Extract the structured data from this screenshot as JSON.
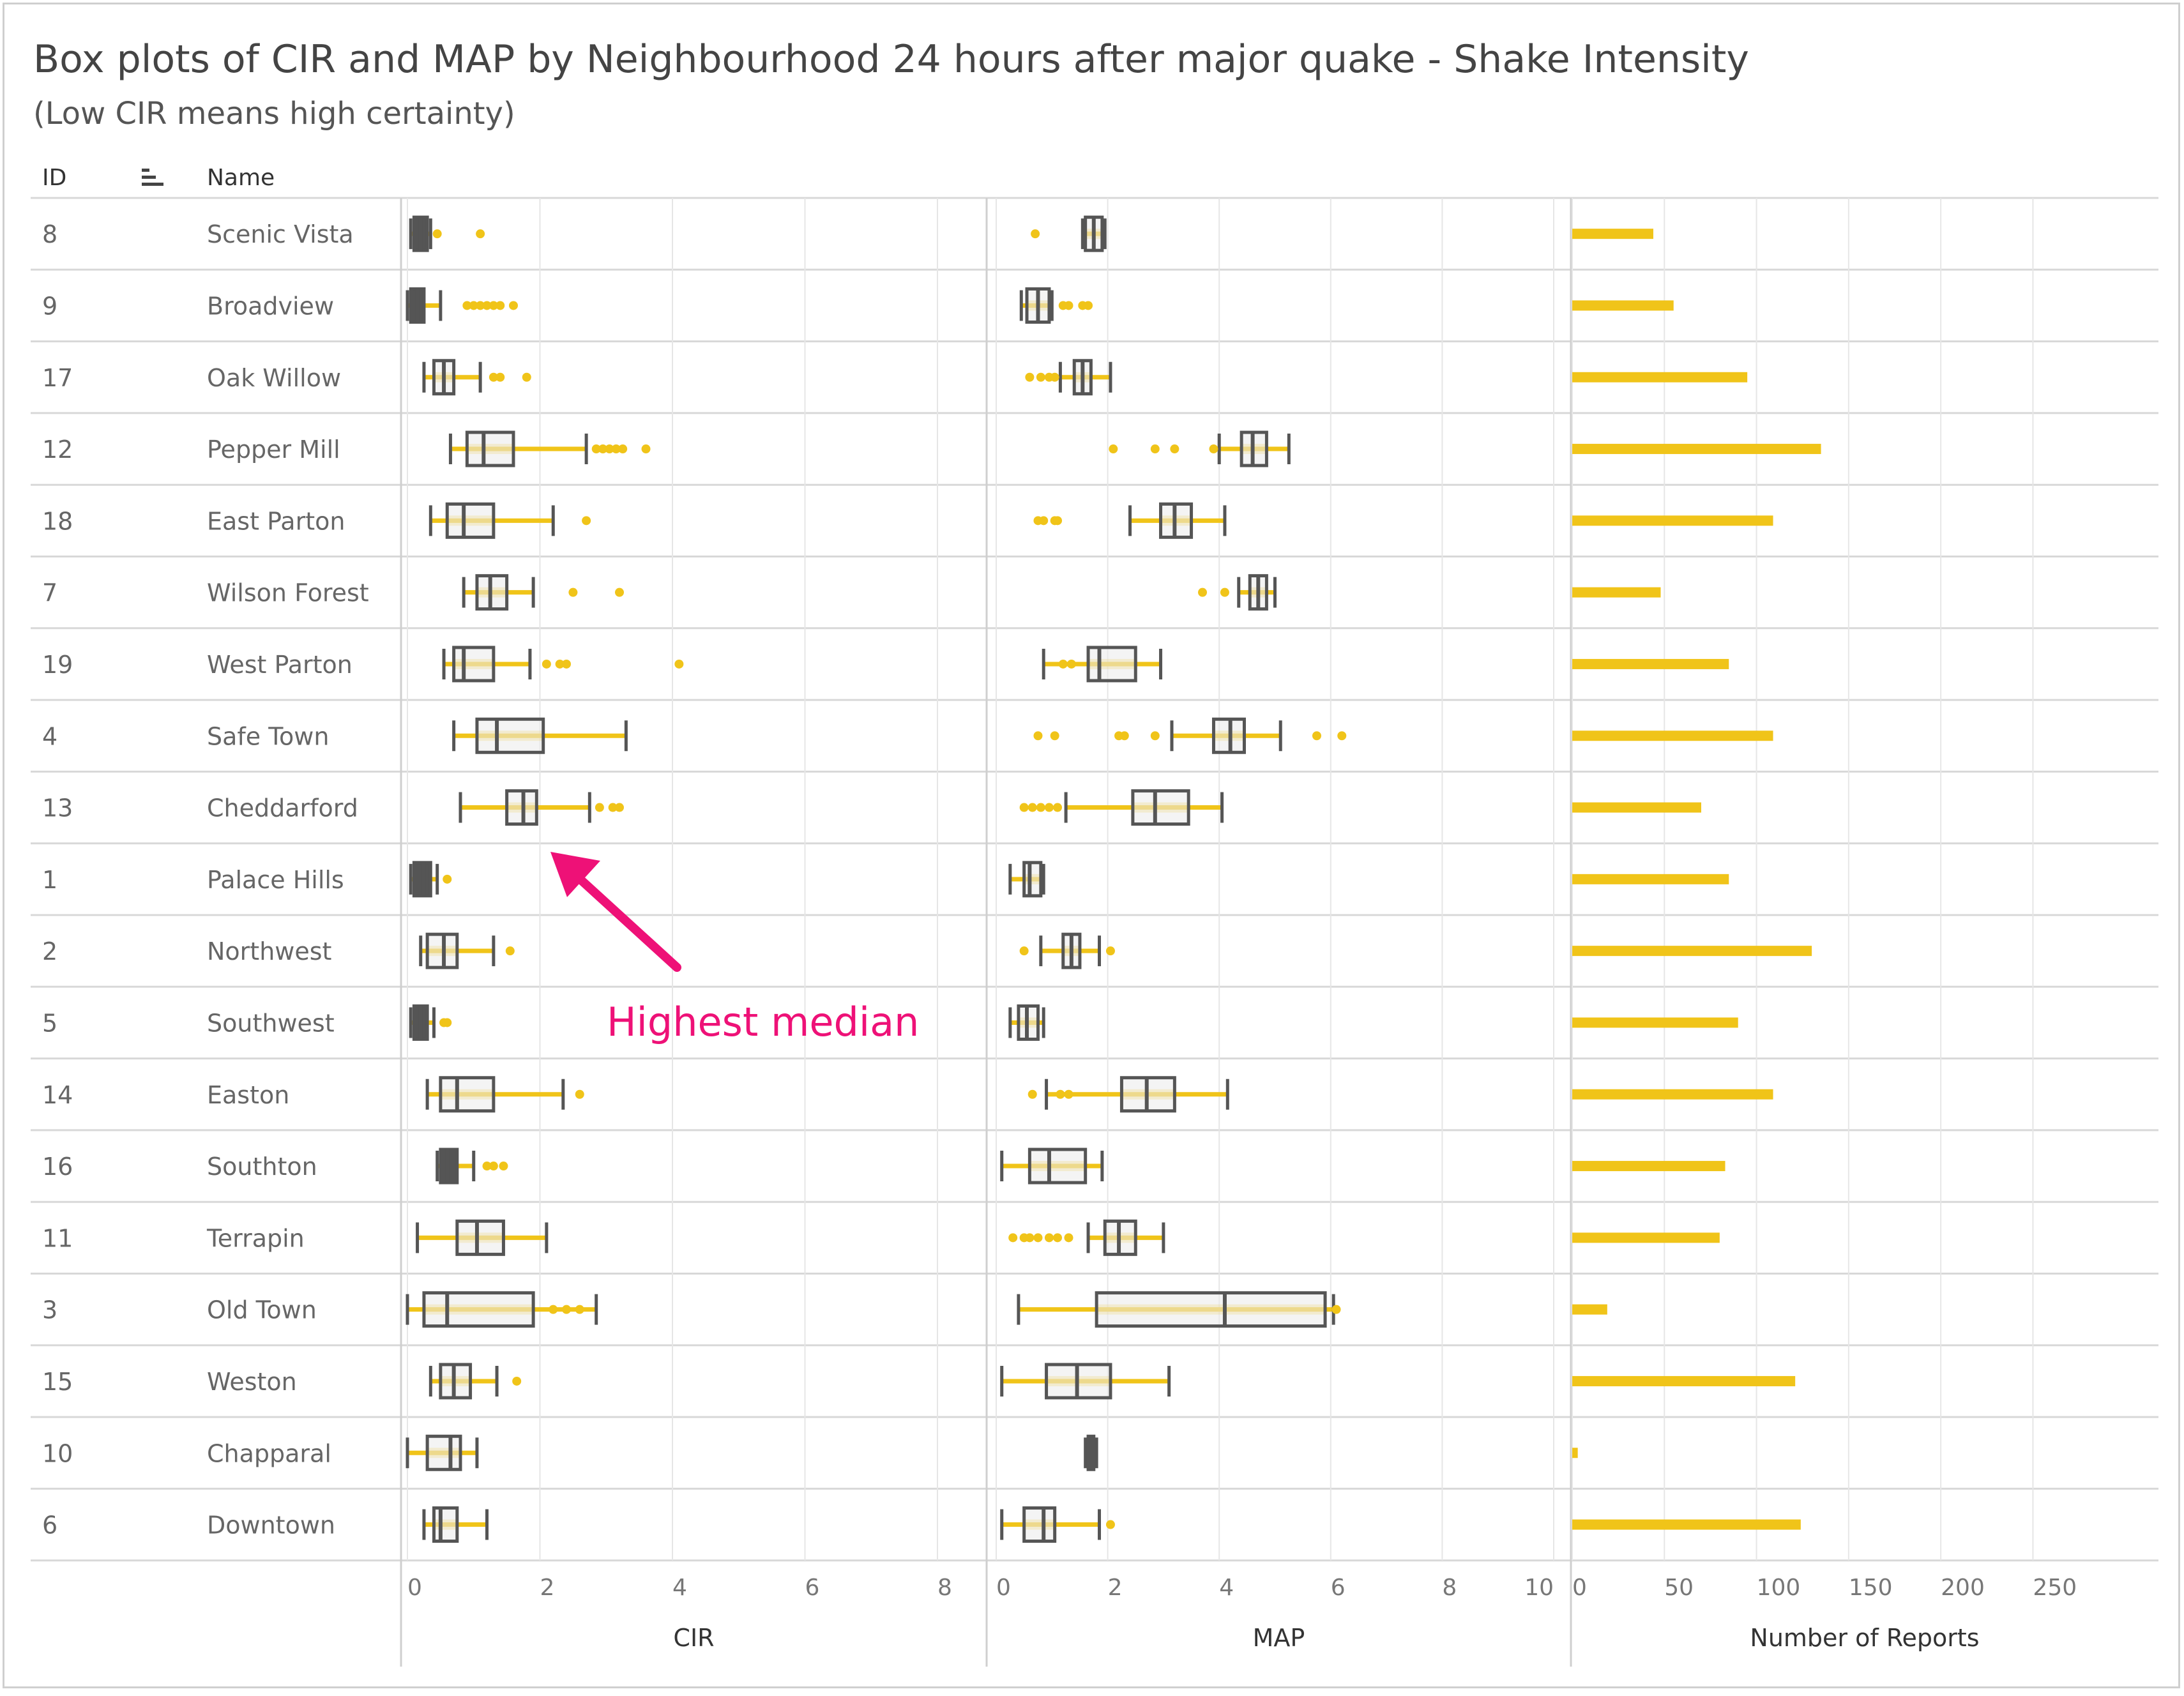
{
  "title": "Box plots of CIR and MAP by Neighbourhood 24 hours after major quake - Shake Intensity",
  "subtitle": "(Low CIR means high certainty)",
  "headers": {
    "id": "ID",
    "name": "Name"
  },
  "annotation": "Highest median",
  "colors": {
    "accent": "#f0c419",
    "box_stroke": "#555555",
    "annotation": "#ee1177",
    "grid": "#e6e6e6"
  },
  "icons": {
    "sort": "sort-descending-icon",
    "arrow": "arrow-up-left-icon"
  },
  "chart_data": [
    {
      "type": "box",
      "xlabel": "CIR",
      "xlim": [
        0,
        8
      ],
      "ticks": [
        0,
        2,
        4,
        6,
        8
      ],
      "rows": [
        {
          "id": "8",
          "name": "Scenic Vista",
          "whisker_low": 0.05,
          "q1": 0.1,
          "median": 0.2,
          "q3": 0.3,
          "whisker_high": 0.35,
          "outliers": [
            0.45,
            1.1
          ]
        },
        {
          "id": "9",
          "name": "Broadview",
          "whisker_low": 0.0,
          "q1": 0.05,
          "median": 0.15,
          "q3": 0.25,
          "whisker_high": 0.5,
          "outliers": [
            0.9,
            1.0,
            1.1,
            1.2,
            1.3,
            1.4,
            1.6
          ]
        },
        {
          "id": "17",
          "name": "Oak Willow",
          "whisker_low": 0.25,
          "q1": 0.4,
          "median": 0.55,
          "q3": 0.7,
          "whisker_high": 1.1,
          "outliers": [
            1.3,
            1.4,
            1.8
          ]
        },
        {
          "id": "12",
          "name": "Pepper Mill",
          "whisker_low": 0.65,
          "q1": 0.9,
          "median": 1.15,
          "q3": 1.6,
          "whisker_high": 2.7,
          "outliers": [
            2.85,
            2.95,
            3.05,
            3.15,
            3.25,
            3.6
          ]
        },
        {
          "id": "18",
          "name": "East Parton",
          "whisker_low": 0.35,
          "q1": 0.6,
          "median": 0.85,
          "q3": 1.3,
          "whisker_high": 2.2,
          "outliers": [
            2.7
          ]
        },
        {
          "id": "7",
          "name": "Wilson Forest",
          "whisker_low": 0.85,
          "q1": 1.05,
          "median": 1.25,
          "q3": 1.5,
          "whisker_high": 1.9,
          "outliers": [
            2.5,
            3.2
          ]
        },
        {
          "id": "19",
          "name": "West Parton",
          "whisker_low": 0.55,
          "q1": 0.7,
          "median": 0.85,
          "q3": 1.3,
          "whisker_high": 1.85,
          "outliers": [
            2.1,
            2.3,
            2.4,
            4.1
          ]
        },
        {
          "id": "4",
          "name": "Safe Town",
          "whisker_low": 0.7,
          "q1": 1.05,
          "median": 1.35,
          "q3": 2.05,
          "whisker_high": 3.3,
          "outliers": []
        },
        {
          "id": "13",
          "name": "Cheddarford",
          "whisker_low": 0.8,
          "q1": 1.5,
          "median": 1.75,
          "q3": 1.95,
          "whisker_high": 2.75,
          "outliers": [
            2.9,
            3.1,
            3.2
          ]
        },
        {
          "id": "1",
          "name": "Palace Hills",
          "whisker_low": 0.05,
          "q1": 0.1,
          "median": 0.25,
          "q3": 0.35,
          "whisker_high": 0.45,
          "outliers": [
            0.6
          ]
        },
        {
          "id": "2",
          "name": "Northwest",
          "whisker_low": 0.2,
          "q1": 0.3,
          "median": 0.55,
          "q3": 0.75,
          "whisker_high": 1.3,
          "outliers": [
            1.55
          ]
        },
        {
          "id": "5",
          "name": "Southwest",
          "whisker_low": 0.05,
          "q1": 0.1,
          "median": 0.2,
          "q3": 0.3,
          "whisker_high": 0.4,
          "outliers": [
            0.55,
            0.6
          ]
        },
        {
          "id": "14",
          "name": "Easton",
          "whisker_low": 0.3,
          "q1": 0.5,
          "median": 0.75,
          "q3": 1.3,
          "whisker_high": 2.35,
          "outliers": [
            2.6
          ]
        },
        {
          "id": "16",
          "name": "Southton",
          "whisker_low": 0.45,
          "q1": 0.5,
          "median": 0.6,
          "q3": 0.75,
          "whisker_high": 1.0,
          "outliers": [
            1.2,
            1.3,
            1.45
          ]
        },
        {
          "id": "11",
          "name": "Terrapin",
          "whisker_low": 0.15,
          "q1": 0.75,
          "median": 1.05,
          "q3": 1.45,
          "whisker_high": 2.1,
          "outliers": []
        },
        {
          "id": "3",
          "name": "Old Town",
          "whisker_low": 0.0,
          "q1": 0.25,
          "median": 0.6,
          "q3": 1.9,
          "whisker_high": 2.85,
          "outliers": [
            2.2,
            2.4,
            2.6
          ]
        },
        {
          "id": "15",
          "name": "Weston",
          "whisker_low": 0.35,
          "q1": 0.5,
          "median": 0.7,
          "q3": 0.95,
          "whisker_high": 1.35,
          "outliers": [
            1.65
          ]
        },
        {
          "id": "10",
          "name": "Chapparal",
          "whisker_low": 0.0,
          "q1": 0.3,
          "median": 0.65,
          "q3": 0.8,
          "whisker_high": 1.05,
          "outliers": []
        },
        {
          "id": "6",
          "name": "Downtown",
          "whisker_low": 0.25,
          "q1": 0.4,
          "median": 0.5,
          "q3": 0.75,
          "whisker_high": 1.2,
          "outliers": []
        }
      ]
    },
    {
      "type": "box",
      "xlabel": "MAP",
      "xlim": [
        0,
        10
      ],
      "ticks": [
        0,
        2,
        4,
        6,
        8,
        10
      ],
      "rows": [
        {
          "id": "8",
          "name": "Scenic Vista",
          "whisker_low": 1.55,
          "q1": 1.6,
          "median": 1.75,
          "q3": 1.9,
          "whisker_high": 1.95,
          "outliers": [
            0.7
          ]
        },
        {
          "id": "9",
          "name": "Broadview",
          "whisker_low": 0.45,
          "q1": 0.55,
          "median": 0.75,
          "q3": 0.95,
          "whisker_high": 1.0,
          "outliers": [
            1.2,
            1.3,
            1.55,
            1.65
          ]
        },
        {
          "id": "17",
          "name": "Oak Willow",
          "whisker_low": 1.15,
          "q1": 1.4,
          "median": 1.55,
          "q3": 1.7,
          "whisker_high": 2.05,
          "outliers": [
            0.6,
            0.8,
            0.95,
            1.05
          ]
        },
        {
          "id": "12",
          "name": "Pepper Mill",
          "whisker_low": 4.0,
          "q1": 4.4,
          "median": 4.6,
          "q3": 4.85,
          "whisker_high": 5.25,
          "outliers": [
            2.1,
            2.85,
            3.2,
            3.9
          ]
        },
        {
          "id": "18",
          "name": "East Parton",
          "whisker_low": 2.4,
          "q1": 2.95,
          "median": 3.2,
          "q3": 3.5,
          "whisker_high": 4.1,
          "outliers": [
            0.75,
            0.85,
            1.05,
            1.1
          ]
        },
        {
          "id": "7",
          "name": "Wilson Forest",
          "whisker_low": 4.35,
          "q1": 4.55,
          "median": 4.7,
          "q3": 4.85,
          "whisker_high": 5.0,
          "outliers": [
            3.7,
            4.1
          ]
        },
        {
          "id": "19",
          "name": "West Parton",
          "whisker_low": 0.85,
          "q1": 1.65,
          "median": 1.85,
          "q3": 2.5,
          "whisker_high": 2.95,
          "outliers": [
            1.2,
            1.35
          ]
        },
        {
          "id": "4",
          "name": "Safe Town",
          "whisker_low": 3.15,
          "q1": 3.9,
          "median": 4.2,
          "q3": 4.45,
          "whisker_high": 5.1,
          "outliers": [
            0.75,
            1.05,
            2.2,
            2.3,
            2.85,
            5.75,
            6.2
          ]
        },
        {
          "id": "13",
          "name": "Cheddarford",
          "whisker_low": 1.25,
          "q1": 2.45,
          "median": 2.85,
          "q3": 3.45,
          "whisker_high": 4.05,
          "outliers": [
            0.5,
            0.65,
            0.8,
            0.95,
            1.1
          ]
        },
        {
          "id": "1",
          "name": "Palace Hills",
          "whisker_low": 0.25,
          "q1": 0.5,
          "median": 0.6,
          "q3": 0.8,
          "whisker_high": 0.85,
          "outliers": []
        },
        {
          "id": "2",
          "name": "Northwest",
          "whisker_low": 0.8,
          "q1": 1.2,
          "median": 1.35,
          "q3": 1.5,
          "whisker_high": 1.85,
          "outliers": [
            0.5,
            2.05
          ]
        },
        {
          "id": "5",
          "name": "Southwest",
          "whisker_low": 0.25,
          "q1": 0.4,
          "median": 0.55,
          "q3": 0.75,
          "whisker_high": 0.85,
          "outliers": []
        },
        {
          "id": "14",
          "name": "Easton",
          "whisker_low": 0.9,
          "q1": 2.25,
          "median": 2.7,
          "q3": 3.2,
          "whisker_high": 4.15,
          "outliers": [
            0.65,
            1.15,
            1.3
          ]
        },
        {
          "id": "16",
          "name": "Southton",
          "whisker_low": 0.1,
          "q1": 0.6,
          "median": 0.95,
          "q3": 1.6,
          "whisker_high": 1.9,
          "outliers": []
        },
        {
          "id": "11",
          "name": "Terrapin",
          "whisker_low": 1.65,
          "q1": 1.95,
          "median": 2.2,
          "q3": 2.5,
          "whisker_high": 3.0,
          "outliers": [
            0.3,
            0.5,
            0.6,
            0.75,
            0.95,
            1.1,
            1.3
          ]
        },
        {
          "id": "3",
          "name": "Old Town",
          "whisker_low": 0.4,
          "q1": 1.8,
          "median": 4.1,
          "q3": 5.9,
          "whisker_high": 6.05,
          "outliers": [
            6.1
          ]
        },
        {
          "id": "15",
          "name": "Weston",
          "whisker_low": 0.1,
          "q1": 0.9,
          "median": 1.45,
          "q3": 2.05,
          "whisker_high": 3.1,
          "outliers": []
        },
        {
          "id": "10",
          "name": "Chapparal",
          "whisker_low": 1.6,
          "q1": 1.65,
          "median": 1.7,
          "q3": 1.75,
          "whisker_high": 1.8,
          "outliers": []
        },
        {
          "id": "6",
          "name": "Downtown",
          "whisker_low": 0.1,
          "q1": 0.5,
          "median": 0.85,
          "q3": 1.05,
          "whisker_high": 1.85,
          "outliers": [
            2.05
          ]
        }
      ]
    },
    {
      "type": "bar",
      "xlabel": "Number of Reports",
      "xlim": [
        0,
        280
      ],
      "ticks": [
        0,
        50,
        100,
        150,
        200,
        250
      ],
      "categories": [
        "Scenic Vista",
        "Broadview",
        "Oak Willow",
        "Pepper Mill",
        "East Parton",
        "Wilson Forest",
        "West Parton",
        "Safe Town",
        "Cheddarford",
        "Palace Hills",
        "Northwest",
        "Southwest",
        "Easton",
        "Southton",
        "Terrapin",
        "Old Town",
        "Weston",
        "Chapparal",
        "Downtown"
      ],
      "values": [
        44,
        55,
        95,
        135,
        109,
        48,
        85,
        109,
        70,
        85,
        130,
        90,
        109,
        83,
        80,
        19,
        121,
        3,
        124
      ]
    }
  ]
}
